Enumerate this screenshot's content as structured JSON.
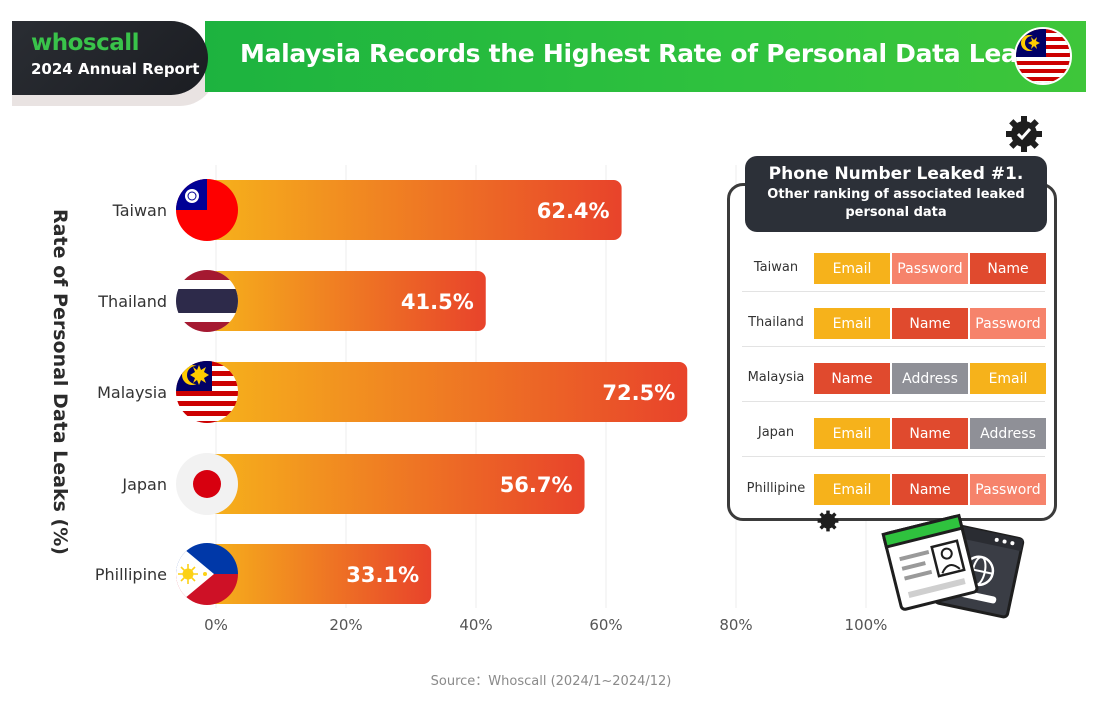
{
  "header": {
    "brand": "whoscall",
    "report": "2024 Annual Report",
    "title": "Malaysia Records the Highest Rate of Personal Data Leaks!"
  },
  "colors": {
    "bar_start": "#f6b21b",
    "bar_end": "#e8432b",
    "email": "#f6b21b",
    "name": "#e04a2e",
    "password": "#f6836b",
    "address": "#8f9097",
    "header_green": "#2fc23e",
    "panel_dark": "#2c3038"
  },
  "chart_data": {
    "type": "bar",
    "orientation": "horizontal",
    "categories": [
      "Taiwan",
      "Thailand",
      "Malaysia",
      "Japan",
      "Phillipine"
    ],
    "values": [
      62.4,
      41.5,
      72.5,
      56.7,
      33.1
    ],
    "value_labels": [
      "62.4%",
      "41.5%",
      "72.5%",
      "56.7%",
      "33.1%"
    ],
    "ylabel": "Rate of Personal Data Leaks (%)",
    "xlim": [
      0,
      100
    ],
    "xticks": [
      "0%",
      "20%",
      "40%",
      "60%",
      "80%",
      "100%"
    ],
    "flags": [
      "taiwan-flag",
      "thailand-flag",
      "malaysia-flag",
      "japan-flag",
      "philippines-flag"
    ]
  },
  "panel": {
    "title": "Phone Number Leaked #1.",
    "subtitle": "Other ranking of associated leaked personal data",
    "rows": [
      {
        "country": "Taiwan",
        "items": [
          "Email",
          "Password",
          "Name"
        ]
      },
      {
        "country": "Thailand",
        "items": [
          "Email",
          "Name",
          "Password"
        ]
      },
      {
        "country": "Malaysia",
        "items": [
          "Name",
          "Address",
          "Email"
        ]
      },
      {
        "country": "Japan",
        "items": [
          "Email",
          "Name",
          "Address"
        ]
      },
      {
        "country": "Phillipine",
        "items": [
          "Email",
          "Name",
          "Password"
        ]
      }
    ]
  },
  "source": "Source：Whoscall (2024/1~2024/12)"
}
